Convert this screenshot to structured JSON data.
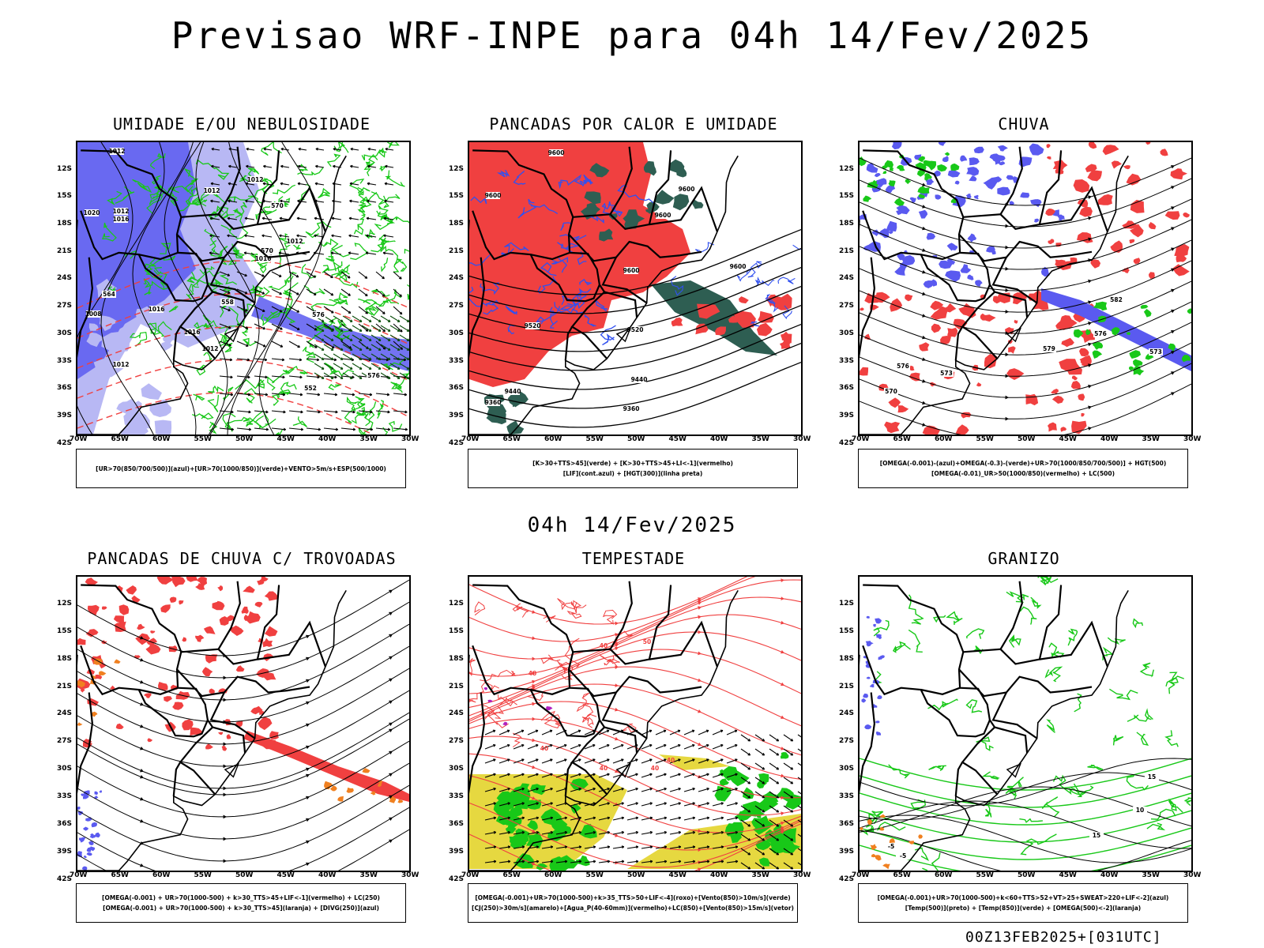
{
  "main_title": "Previsao WRF-INPE  para 04h 14/Fev/2025",
  "mid_title": "04h 14/Fev/2025",
  "footer": "00Z13FEB2025+[031UTC]",
  "lat_labels": [
    "12S",
    "15S",
    "18S",
    "21S",
    "24S",
    "27S",
    "30S",
    "33S",
    "36S",
    "39S",
    "42S"
  ],
  "lon_labels": [
    "70W",
    "65W",
    "60W",
    "55W",
    "50W",
    "45W",
    "40W",
    "35W",
    "30W"
  ],
  "colors": {
    "blue": "#5a5af0",
    "lightblue": "#b8b8f4",
    "green": "#18c818",
    "red": "#f04040",
    "darkgreen": "#2e5e52",
    "yellow": "#e6d840",
    "orange": "#f08020",
    "purple": "#b020c0"
  },
  "panels": [
    {
      "title": "UMIDADE E/OU NEBULOSIDADE",
      "legend": [
        "[UR>70(850/700/500)](azul)+[UR>70(1000/850)](verde)+VENTO>5m/s+ESP(500/1000)"
      ],
      "labels": [
        "1012",
        "1012",
        "1012",
        "1012",
        "1016",
        "1012",
        "1020",
        "1016",
        "1008",
        "1016",
        "1016",
        "1012",
        "1012",
        "570",
        "570",
        "576",
        "564",
        "558",
        "552",
        "576"
      ]
    },
    {
      "title": "PANCADAS POR CALOR E UMIDADE",
      "legend": [
        "[K>30+TTS>45](verde) + [K>30+TTS>45+LI<-1](vermelho)",
        "[LIF](cont.azul) + [HGT(300)](linha preta)"
      ],
      "labels": [
        "9600",
        "9600",
        "9600",
        "9600",
        "9600",
        "9600",
        "9520",
        "9520",
        "9440",
        "9440",
        "9360",
        "9360"
      ]
    },
    {
      "title": "CHUVA",
      "legend": [
        "[OMEGA(-0.001)-(azul)+OMEGA(-0.3)-(verde)+UR>70(1000/850/700/500)] + HGT(500)",
        "[OMEGA(-0.01)_UR>50(1000/850)(vermelho) + LC(500)"
      ],
      "labels": [
        "582",
        "576",
        "579",
        "576",
        "573",
        "570",
        "573"
      ]
    },
    {
      "title": "PANCADAS DE CHUVA C/ TROVOADAS",
      "legend": [
        "[OMEGA(-0.001) + UR>70(1000-500) + k>30_TTS>45+LIF<-1](vermelho) + LC(250)",
        "[OMEGA(-0.001) + UR>70(1000-500) + k>30_TTS>45](laranja) + [DIVG(250)](azul)"
      ],
      "labels": []
    },
    {
      "title": "TEMPESTADE",
      "legend": [
        "[OMEGA(-0.001)+UR>70(1000-500)+k>35_TTS>50+LIF<-4](roxo)+[Vento(850)>10m/s](verde)",
        "[CJ(250)>30m/s](amarelo)+[Agua_P(40-60mm)](vermelho)+LC(850)+[Vento(850)>15m/s](vetor)"
      ],
      "labels": [
        "40",
        "40",
        "40",
        "40",
        "50",
        "40",
        "40"
      ]
    },
    {
      "title": "GRANIZO",
      "legend": [
        "[OMEGA(-0.001)+UR>70(1000-500)+k<60+TTS>52+VT>25+SWEAT>220+LIF<-2](azul)",
        "[Temp(500)](preto) + [Temp(850)](verde) + [OMEGA(500)<-2](laranja)"
      ],
      "labels": [
        "-5",
        "-5",
        "15",
        "10",
        "15"
      ]
    }
  ]
}
